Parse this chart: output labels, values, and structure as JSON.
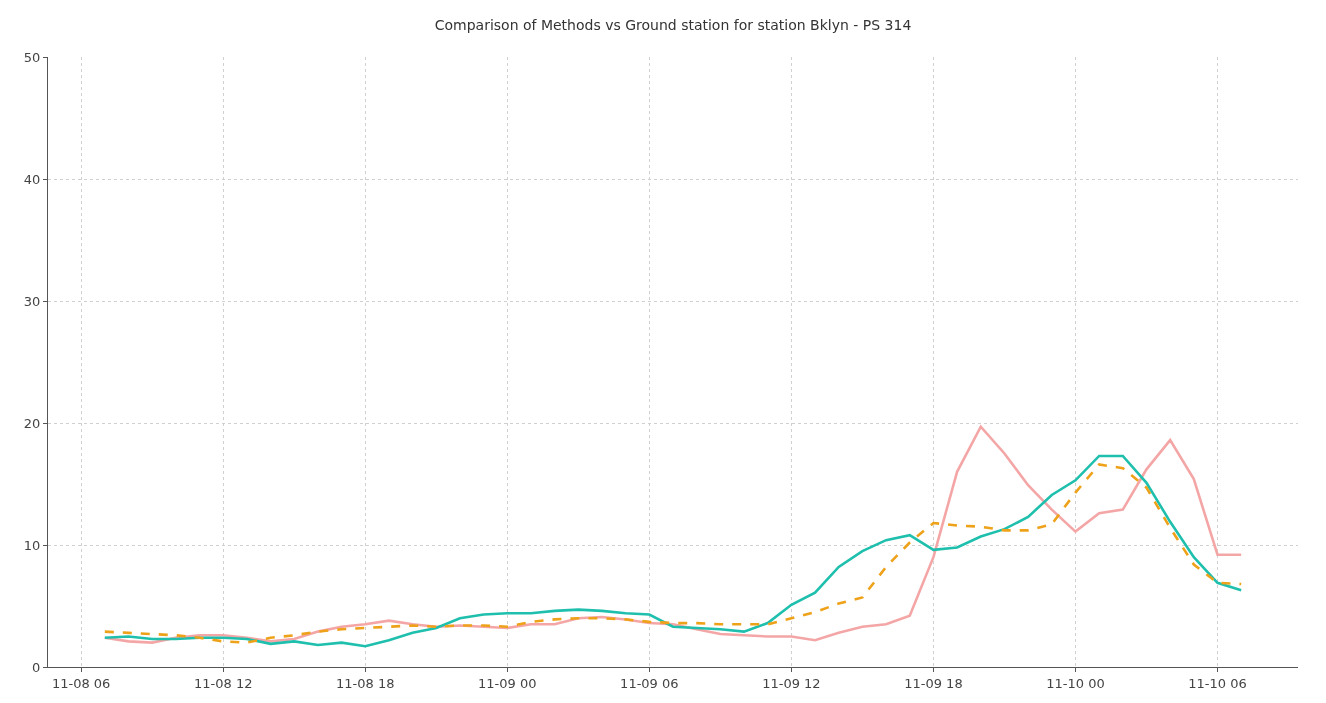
{
  "chart_data": {
    "type": "line",
    "title": "Comparison of Methods vs Ground station for station Bklyn - PS 314",
    "x": [
      "--11-08T07:00",
      "--11-08T08:00",
      "--11-08T09:00",
      "--11-08T10:00",
      "--11-08T11:00",
      "--11-08T12:00",
      "--11-08T13:00",
      "--11-08T14:00",
      "--11-08T15:00",
      "--11-08T16:00",
      "--11-08T17:00",
      "--11-08T18:00",
      "--11-08T19:00",
      "--11-08T20:00",
      "--11-08T21:00",
      "--11-08T22:00",
      "--11-08T23:00",
      "--11-09T00:00",
      "--11-09T01:00",
      "--11-09T02:00",
      "--11-09T03:00",
      "--11-09T04:00",
      "--11-09T05:00",
      "--11-09T06:00",
      "--11-09T07:00",
      "--11-09T08:00",
      "--11-09T09:00",
      "--11-09T10:00",
      "--11-09T11:00",
      "--11-09T12:00",
      "--11-09T13:00",
      "--11-09T14:00",
      "--11-09T15:00",
      "--11-09T16:00",
      "--11-09T17:00",
      "--11-09T18:00",
      "--11-09T19:00",
      "--11-09T20:00",
      "--11-09T21:00",
      "--11-09T22:00",
      "--11-09T23:00",
      "--11-10T00:00",
      "--11-10T01:00",
      "--11-10T02:00",
      "--11-10T03:00",
      "--11-10T04:00",
      "--11-10T05:00",
      "--11-10T06:00",
      "--11-10T07:00"
    ],
    "xlim": [
      "--11-08T04:36",
      "--11-10T09:24"
    ],
    "xticks": [
      {
        "value": "--11-08T06:00",
        "label": "11-08 06"
      },
      {
        "value": "--11-08T12:00",
        "label": "11-08 12"
      },
      {
        "value": "--11-08T18:00",
        "label": "11-08 18"
      },
      {
        "value": "--11-09T00:00",
        "label": "11-09 00"
      },
      {
        "value": "--11-09T06:00",
        "label": "11-09 06"
      },
      {
        "value": "--11-09T12:00",
        "label": "11-09 12"
      },
      {
        "value": "--11-09T18:00",
        "label": "11-09 18"
      },
      {
        "value": "--11-10T00:00",
        "label": "11-10 00"
      },
      {
        "value": "--11-10T06:00",
        "label": "11-10 06"
      }
    ],
    "ylim": [
      0,
      50
    ],
    "yticks": [
      0,
      10,
      20,
      30,
      40,
      50
    ],
    "grid": true,
    "series": [
      {
        "color": "#f4a6a6",
        "line_style": "solid",
        "values": [
          2.4,
          2.1,
          2.0,
          2.4,
          2.6,
          2.6,
          2.4,
          2.1,
          2.3,
          2.9,
          3.3,
          3.5,
          3.8,
          3.5,
          3.3,
          3.4,
          3.3,
          3.2,
          3.5,
          3.5,
          4.0,
          4.1,
          3.9,
          3.6,
          3.5,
          3.1,
          2.7,
          2.6,
          2.5,
          2.5,
          2.2,
          2.8,
          3.3,
          3.5,
          4.2,
          9.0,
          16.0,
          19.7,
          17.5,
          14.9,
          12.9,
          11.1,
          12.6,
          12.9,
          16.2,
          18.6,
          15.4,
          9.2,
          9.2
        ]
      },
      {
        "color": "#1fbfad",
        "line_style": "solid",
        "values": [
          2.4,
          2.5,
          2.3,
          2.3,
          2.4,
          2.4,
          2.3,
          1.9,
          2.1,
          1.8,
          2.0,
          1.7,
          2.2,
          2.8,
          3.2,
          4.0,
          4.3,
          4.4,
          4.4,
          4.6,
          4.7,
          4.6,
          4.4,
          4.3,
          3.3,
          3.2,
          3.1,
          2.9,
          3.6,
          5.1,
          6.1,
          8.2,
          9.5,
          10.4,
          10.8,
          9.6,
          9.8,
          10.7,
          11.3,
          12.3,
          14.1,
          15.3,
          17.3,
          17.3,
          15.1,
          11.9,
          9.0,
          6.9,
          6.3
        ]
      },
      {
        "color": "#eea21a",
        "line_style": "dashed",
        "values": [
          2.9,
          2.8,
          2.7,
          2.6,
          2.4,
          2.1,
          2.0,
          2.4,
          2.6,
          2.9,
          3.1,
          3.2,
          3.3,
          3.4,
          3.3,
          3.4,
          3.4,
          3.3,
          3.7,
          3.9,
          4.0,
          4.0,
          3.9,
          3.7,
          3.6,
          3.6,
          3.5,
          3.5,
          3.5,
          4.0,
          4.5,
          5.2,
          5.7,
          8.2,
          10.2,
          11.8,
          11.6,
          11.5,
          11.2,
          11.2,
          11.7,
          14.3,
          16.6,
          16.3,
          14.7,
          11.4,
          8.4,
          6.9,
          6.8
        ]
      }
    ]
  }
}
